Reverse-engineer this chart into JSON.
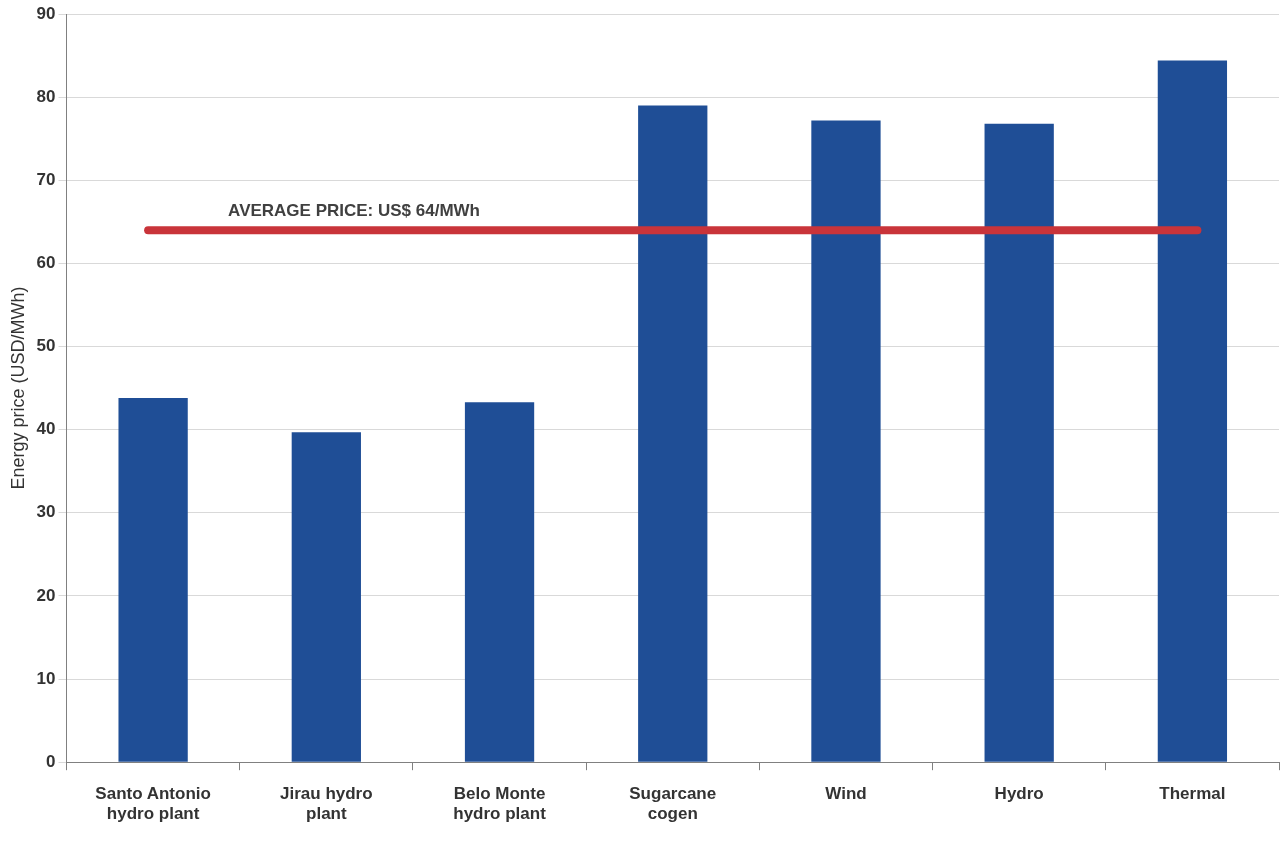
{
  "chart_data": {
    "type": "bar",
    "ylabel": "Energy price (USD/MWh)",
    "categories": [
      "Santo Antonio hydro plant",
      "Jirau hydro plant",
      "Belo Monte hydro plant",
      "Sugarcane cogen",
      "Wind",
      "Hydro",
      "Thermal"
    ],
    "values": [
      43.8,
      39.7,
      43.3,
      79.0,
      77.2,
      76.8,
      84.4
    ],
    "color": "#1f4e96",
    "ylim": [
      0,
      90
    ],
    "yticks": [
      0,
      10,
      20,
      30,
      40,
      50,
      60,
      70,
      80,
      90
    ],
    "grid": "y",
    "ref_lines": [
      {
        "axis": "y",
        "value": 64,
        "label": "AVERAGE PRICE: US$ 64/MWh",
        "color": "#c9343a"
      }
    ]
  }
}
